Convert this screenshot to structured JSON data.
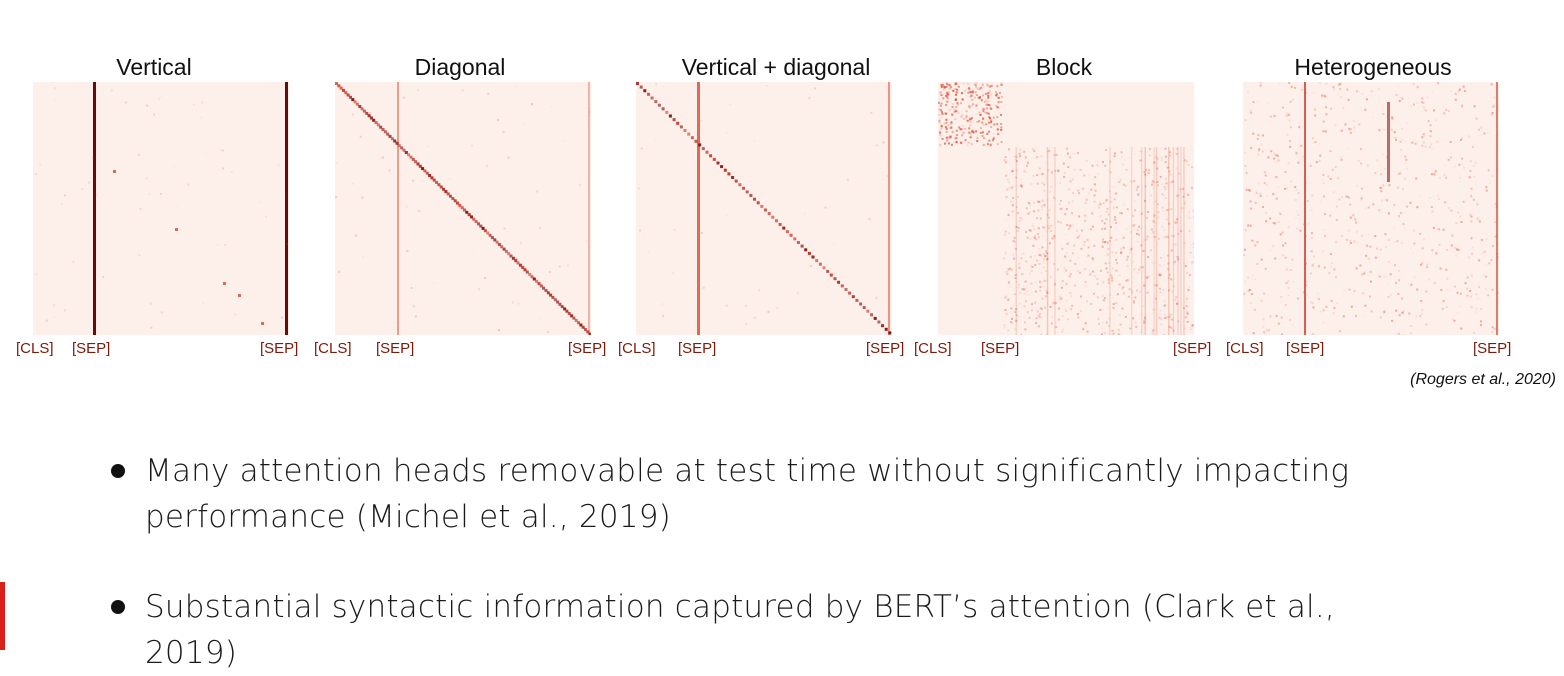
{
  "panels": [
    {
      "title": "Vertical",
      "ticks": {
        "cls": "[CLS]",
        "sep1": "[SEP]",
        "sep2": "[SEP]"
      }
    },
    {
      "title": "Diagonal",
      "ticks": {
        "cls": "[CLS]",
        "sep1": "[SEP]",
        "sep2": "[SEP]"
      }
    },
    {
      "title": "Vertical + diagonal",
      "ticks": {
        "cls": "[CLS]",
        "sep1": "[SEP]",
        "sep2": "[SEP]"
      }
    },
    {
      "title": "Block",
      "ticks": {
        "cls": "[CLS]",
        "sep1": "[SEP]",
        "sep2": "[SEP]"
      }
    },
    {
      "title": "Heterogeneous",
      "ticks": {
        "cls": "[CLS]",
        "sep1": "[SEP]",
        "sep2": "[SEP]"
      }
    }
  ],
  "citation": "(Rogers et al., 2020)",
  "bullets": [
    "Many attention heads removable at test time without significantly impacting performance (Michel et al., 2019)",
    "Substantial syntactic information captured by BERT’s attention (Clark et al., 2019)"
  ],
  "colors": {
    "heatmap_background": "#fdf0eb",
    "heatmap_strong": "#6b0a0a",
    "heatmap_mid": "#e2553a",
    "tick_label": "#7a1a0a",
    "accent_bar": "#d9201b"
  }
}
